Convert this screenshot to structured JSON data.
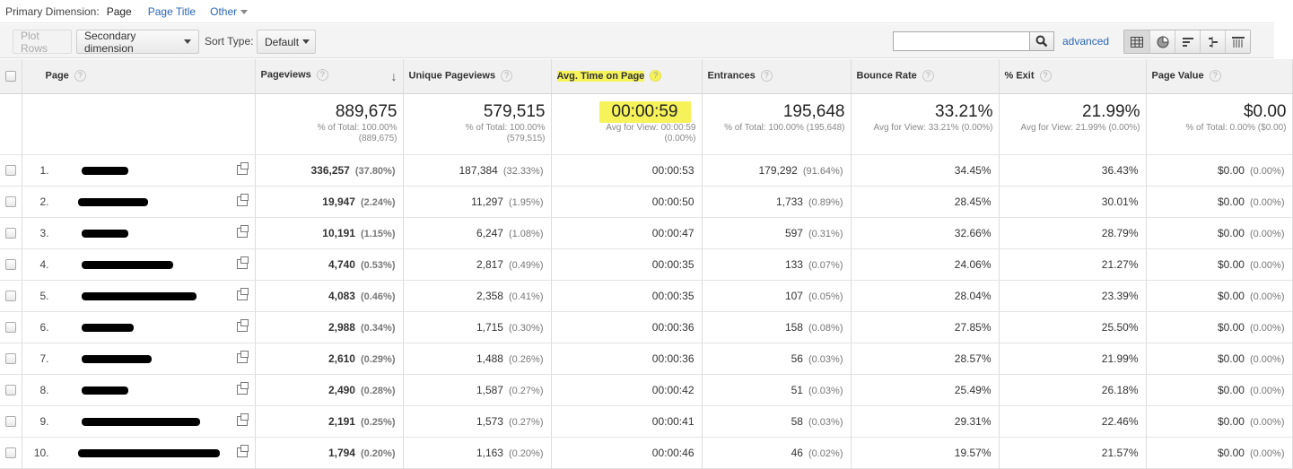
{
  "dimension_bar": {
    "label": "Primary Dimension:",
    "current": "Page",
    "page_title": "Page Title",
    "other": "Other"
  },
  "toolbar": {
    "plot_rows": "Plot Rows",
    "secondary_dimension": "Secondary dimension",
    "sort_type_label": "Sort Type:",
    "sort_type_value": "Default",
    "search_value": "",
    "advanced": "advanced",
    "view_icons": [
      "table-view-icon",
      "pie-view-icon",
      "performance-view-icon",
      "comparison-view-icon",
      "pivot-view-icon"
    ]
  },
  "columns": {
    "page": "Page",
    "pageviews": "Pageviews",
    "unique_pageviews": "Unique Pageviews",
    "avg_time": "Avg. Time on Page",
    "entrances": "Entrances",
    "bounce_rate": "Bounce Rate",
    "exit": "% Exit",
    "page_value": "Page Value",
    "help": "?"
  },
  "totals": {
    "pageviews": "889,675",
    "pageviews_sub1": "% of Total: 100.00%",
    "pageviews_sub2": "(889,675)",
    "unique": "579,515",
    "unique_sub1": "% of Total: 100.00%",
    "unique_sub2": "(579,515)",
    "avg_time": "00:00:59",
    "avg_time_sub1": "Avg for View: 00:00:59",
    "avg_time_sub2": "(0.00%)",
    "entrances": "195,648",
    "entrances_sub1": "% of Total: 100.00% (195,648)",
    "bounce": "33.21%",
    "bounce_sub1": "Avg for View: 33.21% (0.00%)",
    "exit": "21.99%",
    "exit_sub1": "Avg for View: 21.99% (0.00%)",
    "value": "$0.00",
    "value_sub1": "% of Total: 0.00% ($0.00)"
  },
  "rows": [
    {
      "idx": "1.",
      "pv": "336,257",
      "pv_pct": "(37.80%)",
      "upv": "187,384",
      "upv_pct": "(32.33%)",
      "time": "00:00:53",
      "ent": "179,292",
      "ent_pct": "(91.64%)",
      "bounce": "34.45%",
      "exit": "36.43%",
      "val": "$0.00",
      "val_pct": "(0.00%)"
    },
    {
      "idx": "2.",
      "pv": "19,947",
      "pv_pct": "(2.24%)",
      "upv": "11,297",
      "upv_pct": "(1.95%)",
      "time": "00:00:50",
      "ent": "1,733",
      "ent_pct": "(0.89%)",
      "bounce": "28.45%",
      "exit": "30.01%",
      "val": "$0.00",
      "val_pct": "(0.00%)"
    },
    {
      "idx": "3.",
      "pv": "10,191",
      "pv_pct": "(1.15%)",
      "upv": "6,247",
      "upv_pct": "(1.08%)",
      "time": "00:00:47",
      "ent": "597",
      "ent_pct": "(0.31%)",
      "bounce": "32.66%",
      "exit": "28.79%",
      "val": "$0.00",
      "val_pct": "(0.00%)"
    },
    {
      "idx": "4.",
      "pv": "4,740",
      "pv_pct": "(0.53%)",
      "upv": "2,817",
      "upv_pct": "(0.49%)",
      "time": "00:00:35",
      "ent": "133",
      "ent_pct": "(0.07%)",
      "bounce": "24.06%",
      "exit": "21.27%",
      "val": "$0.00",
      "val_pct": "(0.00%)"
    },
    {
      "idx": "5.",
      "pv": "4,083",
      "pv_pct": "(0.46%)",
      "upv": "2,358",
      "upv_pct": "(0.41%)",
      "time": "00:00:35",
      "ent": "107",
      "ent_pct": "(0.05%)",
      "bounce": "28.04%",
      "exit": "23.39%",
      "val": "$0.00",
      "val_pct": "(0.00%)"
    },
    {
      "idx": "6.",
      "pv": "2,988",
      "pv_pct": "(0.34%)",
      "upv": "1,715",
      "upv_pct": "(0.30%)",
      "time": "00:00:36",
      "ent": "158",
      "ent_pct": "(0.08%)",
      "bounce": "27.85%",
      "exit": "25.50%",
      "val": "$0.00",
      "val_pct": "(0.00%)"
    },
    {
      "idx": "7.",
      "pv": "2,610",
      "pv_pct": "(0.29%)",
      "upv": "1,488",
      "upv_pct": "(0.26%)",
      "time": "00:00:36",
      "ent": "56",
      "ent_pct": "(0.03%)",
      "bounce": "28.57%",
      "exit": "21.99%",
      "val": "$0.00",
      "val_pct": "(0.00%)"
    },
    {
      "idx": "8.",
      "pv": "2,490",
      "pv_pct": "(0.28%)",
      "upv": "1,587",
      "upv_pct": "(0.27%)",
      "time": "00:00:42",
      "ent": "51",
      "ent_pct": "(0.03%)",
      "bounce": "25.49%",
      "exit": "26.18%",
      "val": "$0.00",
      "val_pct": "(0.00%)"
    },
    {
      "idx": "9.",
      "pv": "2,191",
      "pv_pct": "(0.25%)",
      "upv": "1,573",
      "upv_pct": "(0.27%)",
      "time": "00:00:41",
      "ent": "58",
      "ent_pct": "(0.03%)",
      "bounce": "29.31%",
      "exit": "22.46%",
      "val": "$0.00",
      "val_pct": "(0.00%)"
    },
    {
      "idx": "10.",
      "pv": "1,794",
      "pv_pct": "(0.20%)",
      "upv": "1,163",
      "upv_pct": "(0.20%)",
      "time": "00:00:46",
      "ent": "46",
      "ent_pct": "(0.02%)",
      "bounce": "19.57%",
      "exit": "21.57%",
      "val": "$0.00",
      "val_pct": "(0.00%)"
    }
  ]
}
